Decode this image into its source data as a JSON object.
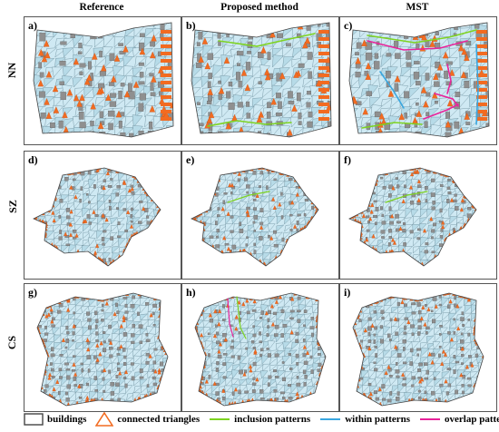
{
  "columns": [
    "Reference",
    "Proposed method",
    "MST"
  ],
  "rows": [
    "NN",
    "SZ",
    "CS"
  ],
  "panel_labels": [
    [
      "a)",
      "b)",
      "c)"
    ],
    [
      "d)",
      "e)",
      "f)"
    ],
    [
      "g)",
      "h)",
      "i)"
    ]
  ],
  "legend": {
    "buildings": "buildings",
    "connected_triangles": "connected triangles",
    "inclusion": "inclusion patterns",
    "within": "within patterns",
    "overlap": "overlap patterns"
  },
  "colors": {
    "building": "#8f8f8f",
    "triangle_fill": "#cfe9f3",
    "triangle_edge": "#6a8c99",
    "connected": "#f26b21",
    "inclusion": "#7ed321",
    "within": "#3aa7e0",
    "overlap": "#e8239a"
  }
}
